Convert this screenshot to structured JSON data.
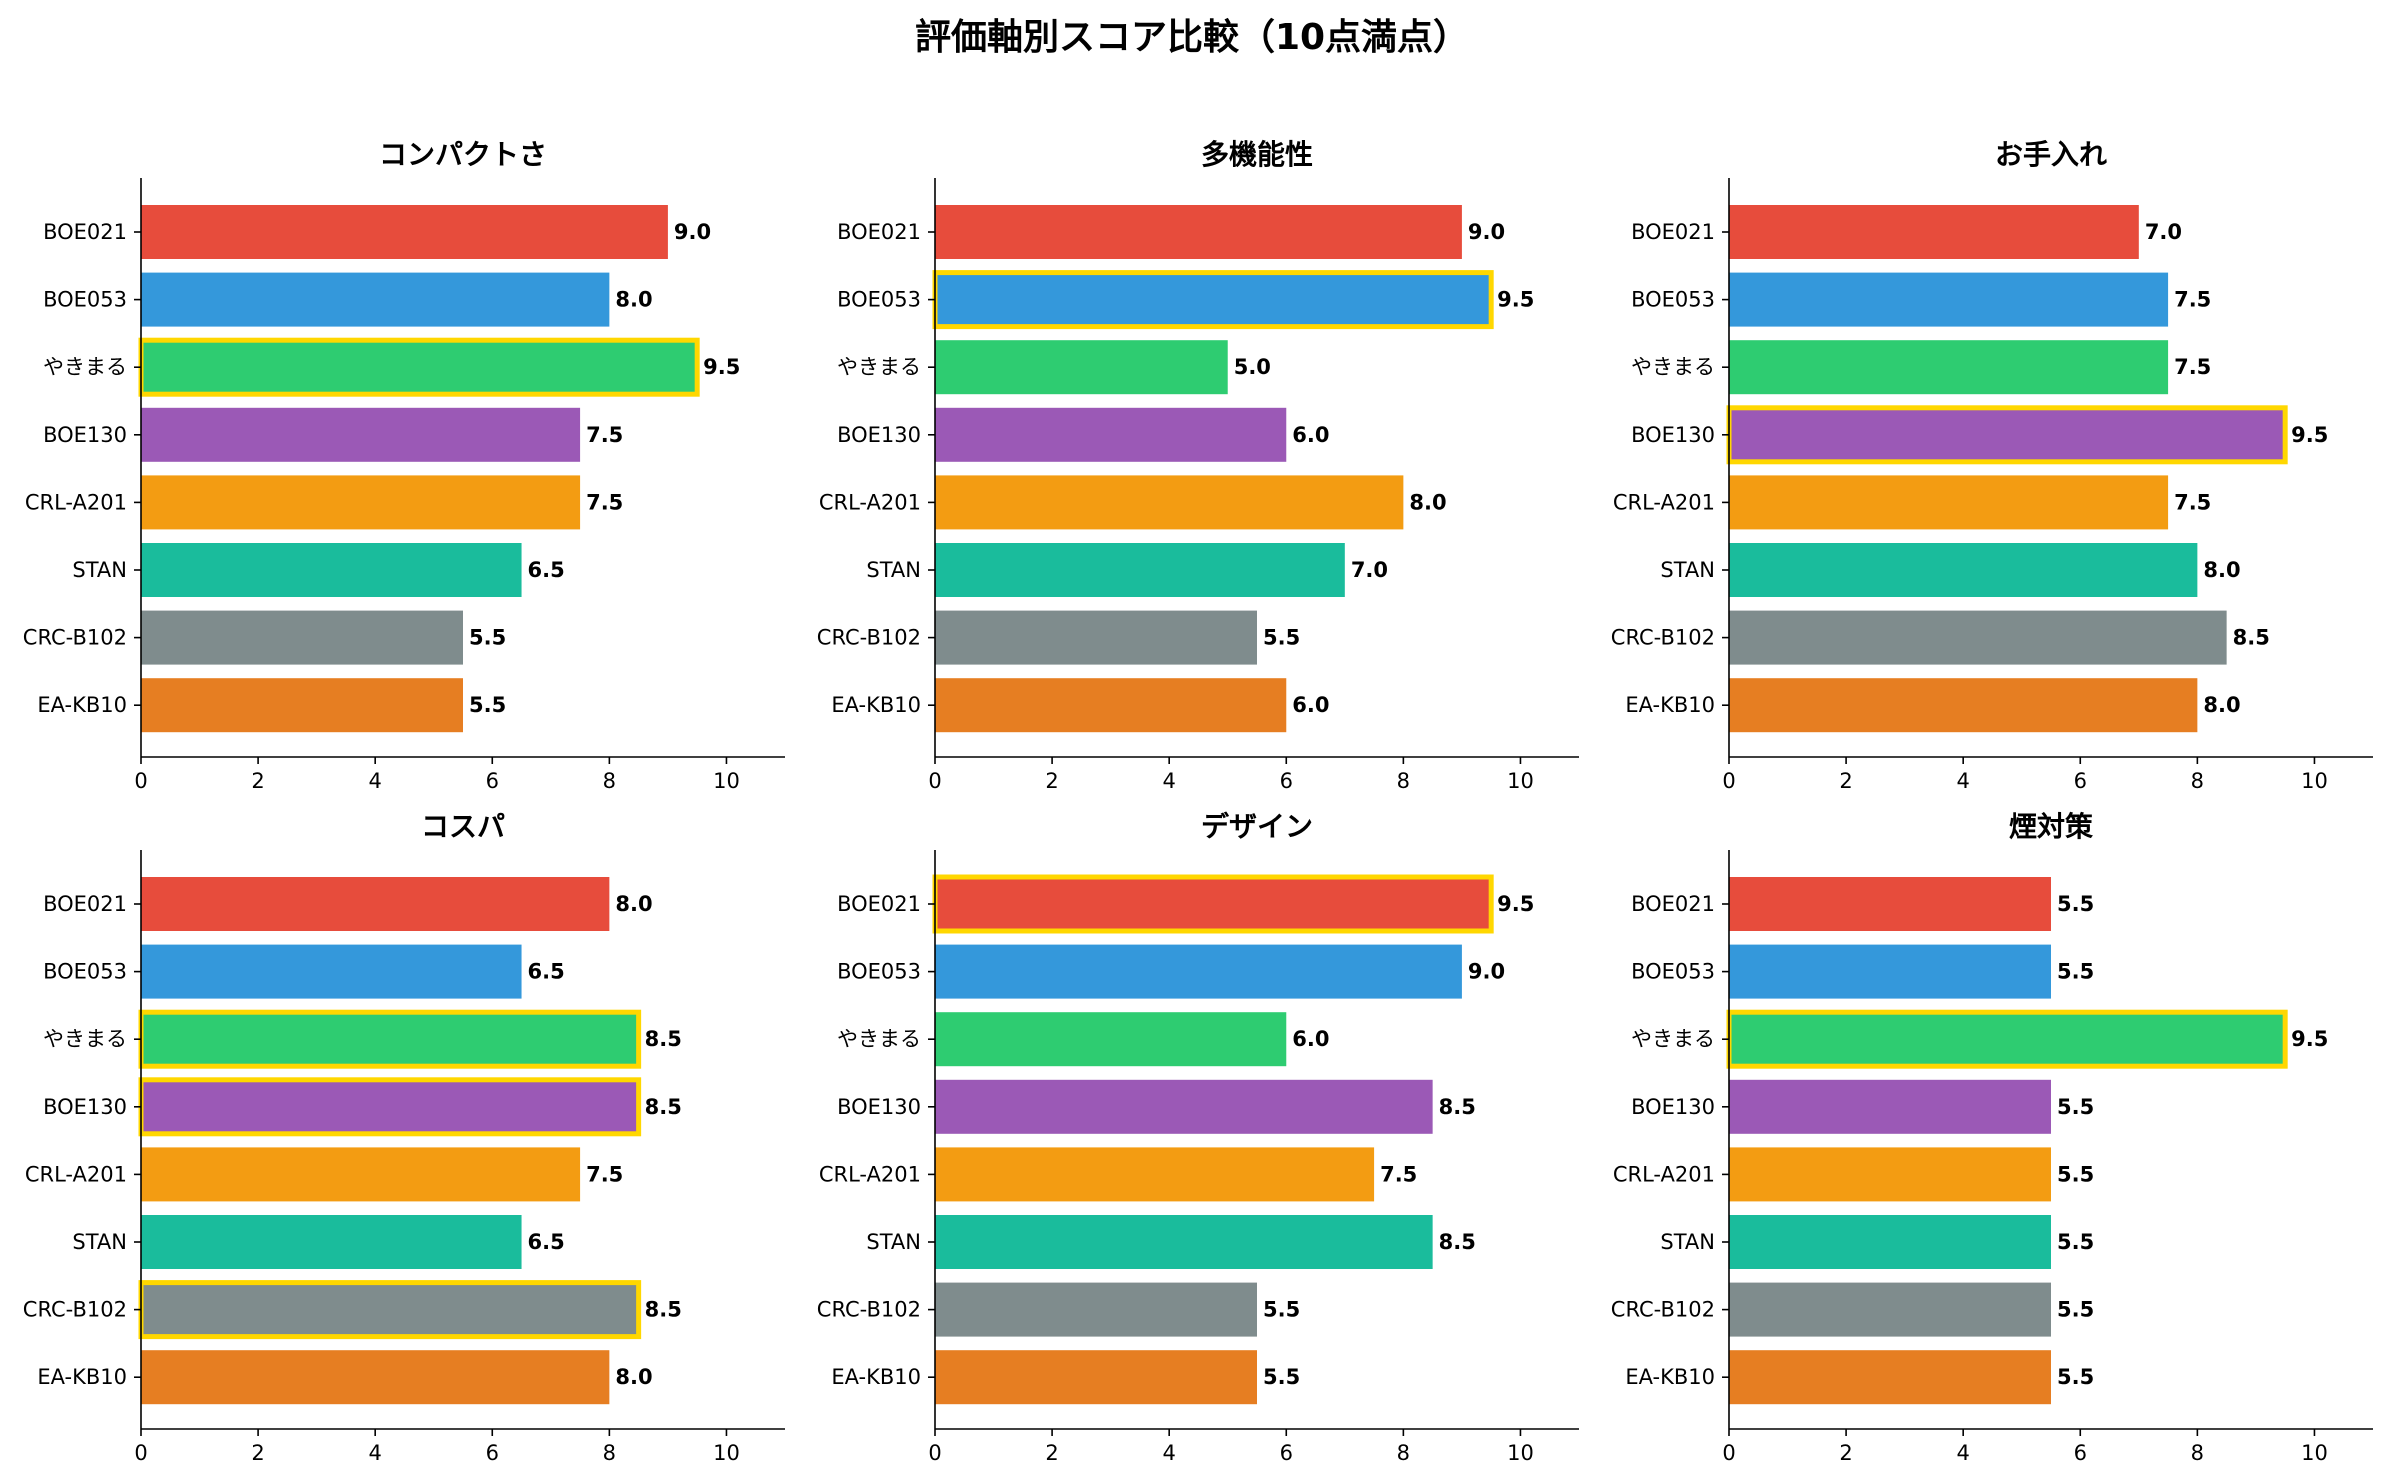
{
  "title": "評価軸別スコア比較（10点満点）",
  "chart_data": [
    {
      "type": "bar",
      "orientation": "horizontal",
      "title": "コンパクトさ",
      "categories": [
        "BOE021",
        "BOE053",
        "やきまる",
        "BOE130",
        "CRL-A201",
        "STAN",
        "CRC-B102",
        "EA-KB10"
      ],
      "values": [
        9.0,
        8.0,
        9.5,
        7.5,
        7.5,
        6.5,
        5.5,
        5.5
      ],
      "value_labels": [
        "9.0",
        "8.0",
        "9.5",
        "7.5",
        "7.5",
        "6.5",
        "5.5",
        "5.5"
      ],
      "highlighted": [
        "やきまる"
      ],
      "xlim": [
        0,
        11
      ],
      "xticks": [
        0,
        2,
        4,
        6,
        8,
        10
      ],
      "xtick_labels": [
        "0",
        "2",
        "4",
        "6",
        "8",
        "10"
      ],
      "grid": false
    },
    {
      "type": "bar",
      "orientation": "horizontal",
      "title": "多機能性",
      "categories": [
        "BOE021",
        "BOE053",
        "やきまる",
        "BOE130",
        "CRL-A201",
        "STAN",
        "CRC-B102",
        "EA-KB10"
      ],
      "values": [
        9.0,
        9.5,
        5.0,
        6.0,
        8.0,
        7.0,
        5.5,
        6.0
      ],
      "value_labels": [
        "9.0",
        "9.5",
        "5.0",
        "6.0",
        "8.0",
        "7.0",
        "5.5",
        "6.0"
      ],
      "highlighted": [
        "BOE053"
      ],
      "xlim": [
        0,
        11
      ],
      "xticks": [
        0,
        2,
        4,
        6,
        8,
        10
      ],
      "xtick_labels": [
        "0",
        "2",
        "4",
        "6",
        "8",
        "10"
      ],
      "grid": false
    },
    {
      "type": "bar",
      "orientation": "horizontal",
      "title": "お手入れ",
      "categories": [
        "BOE021",
        "BOE053",
        "やきまる",
        "BOE130",
        "CRL-A201",
        "STAN",
        "CRC-B102",
        "EA-KB10"
      ],
      "values": [
        7.0,
        7.5,
        7.5,
        9.5,
        7.5,
        8.0,
        8.5,
        8.0
      ],
      "value_labels": [
        "7.0",
        "7.5",
        "7.5",
        "9.5",
        "7.5",
        "8.0",
        "8.5",
        "8.0"
      ],
      "highlighted": [
        "BOE130"
      ],
      "xlim": [
        0,
        11
      ],
      "xticks": [
        0,
        2,
        4,
        6,
        8,
        10
      ],
      "xtick_labels": [
        "0",
        "2",
        "4",
        "6",
        "8",
        "10"
      ],
      "grid": false
    },
    {
      "type": "bar",
      "orientation": "horizontal",
      "title": "コスパ",
      "categories": [
        "BOE021",
        "BOE053",
        "やきまる",
        "BOE130",
        "CRL-A201",
        "STAN",
        "CRC-B102",
        "EA-KB10"
      ],
      "values": [
        8.0,
        6.5,
        8.5,
        8.5,
        7.5,
        6.5,
        8.5,
        8.0
      ],
      "value_labels": [
        "8.0",
        "6.5",
        "8.5",
        "8.5",
        "7.5",
        "6.5",
        "8.5",
        "8.0"
      ],
      "highlighted": [
        "やきまる",
        "BOE130",
        "CRC-B102"
      ],
      "xlim": [
        0,
        11
      ],
      "xticks": [
        0,
        2,
        4,
        6,
        8,
        10
      ],
      "xtick_labels": [
        "0",
        "2",
        "4",
        "6",
        "8",
        "10"
      ],
      "grid": false
    },
    {
      "type": "bar",
      "orientation": "horizontal",
      "title": "デザイン",
      "categories": [
        "BOE021",
        "BOE053",
        "やきまる",
        "BOE130",
        "CRL-A201",
        "STAN",
        "CRC-B102",
        "EA-KB10"
      ],
      "values": [
        9.5,
        9.0,
        6.0,
        8.5,
        7.5,
        8.5,
        5.5,
        5.5
      ],
      "value_labels": [
        "9.5",
        "9.0",
        "6.0",
        "8.5",
        "7.5",
        "8.5",
        "5.5",
        "5.5"
      ],
      "highlighted": [
        "BOE021"
      ],
      "xlim": [
        0,
        11
      ],
      "xticks": [
        0,
        2,
        4,
        6,
        8,
        10
      ],
      "xtick_labels": [
        "0",
        "2",
        "4",
        "6",
        "8",
        "10"
      ],
      "grid": false
    },
    {
      "type": "bar",
      "orientation": "horizontal",
      "title": "煙対策",
      "categories": [
        "BOE021",
        "BOE053",
        "やきまる",
        "BOE130",
        "CRL-A201",
        "STAN",
        "CRC-B102",
        "EA-KB10"
      ],
      "values": [
        5.5,
        5.5,
        9.5,
        5.5,
        5.5,
        5.5,
        5.5,
        5.5
      ],
      "value_labels": [
        "5.5",
        "5.5",
        "9.5",
        "5.5",
        "5.5",
        "5.5",
        "5.5",
        "5.5"
      ],
      "highlighted": [
        "やきまる"
      ],
      "xlim": [
        0,
        11
      ],
      "xticks": [
        0,
        2,
        4,
        6,
        8,
        10
      ],
      "xtick_labels": [
        "0",
        "2",
        "4",
        "6",
        "8",
        "10"
      ],
      "grid": false
    }
  ],
  "colors": {
    "BOE021": "#e74c3c",
    "BOE053": "#3498db",
    "やきまる": "#2ecc71",
    "BOE130": "#9b59b6",
    "CRL-A201": "#f39c12",
    "STAN": "#1abc9c",
    "CRC-B102": "#7f8c8d",
    "EA-KB10": "#e67e22",
    "highlight_border": "#ffd700"
  }
}
